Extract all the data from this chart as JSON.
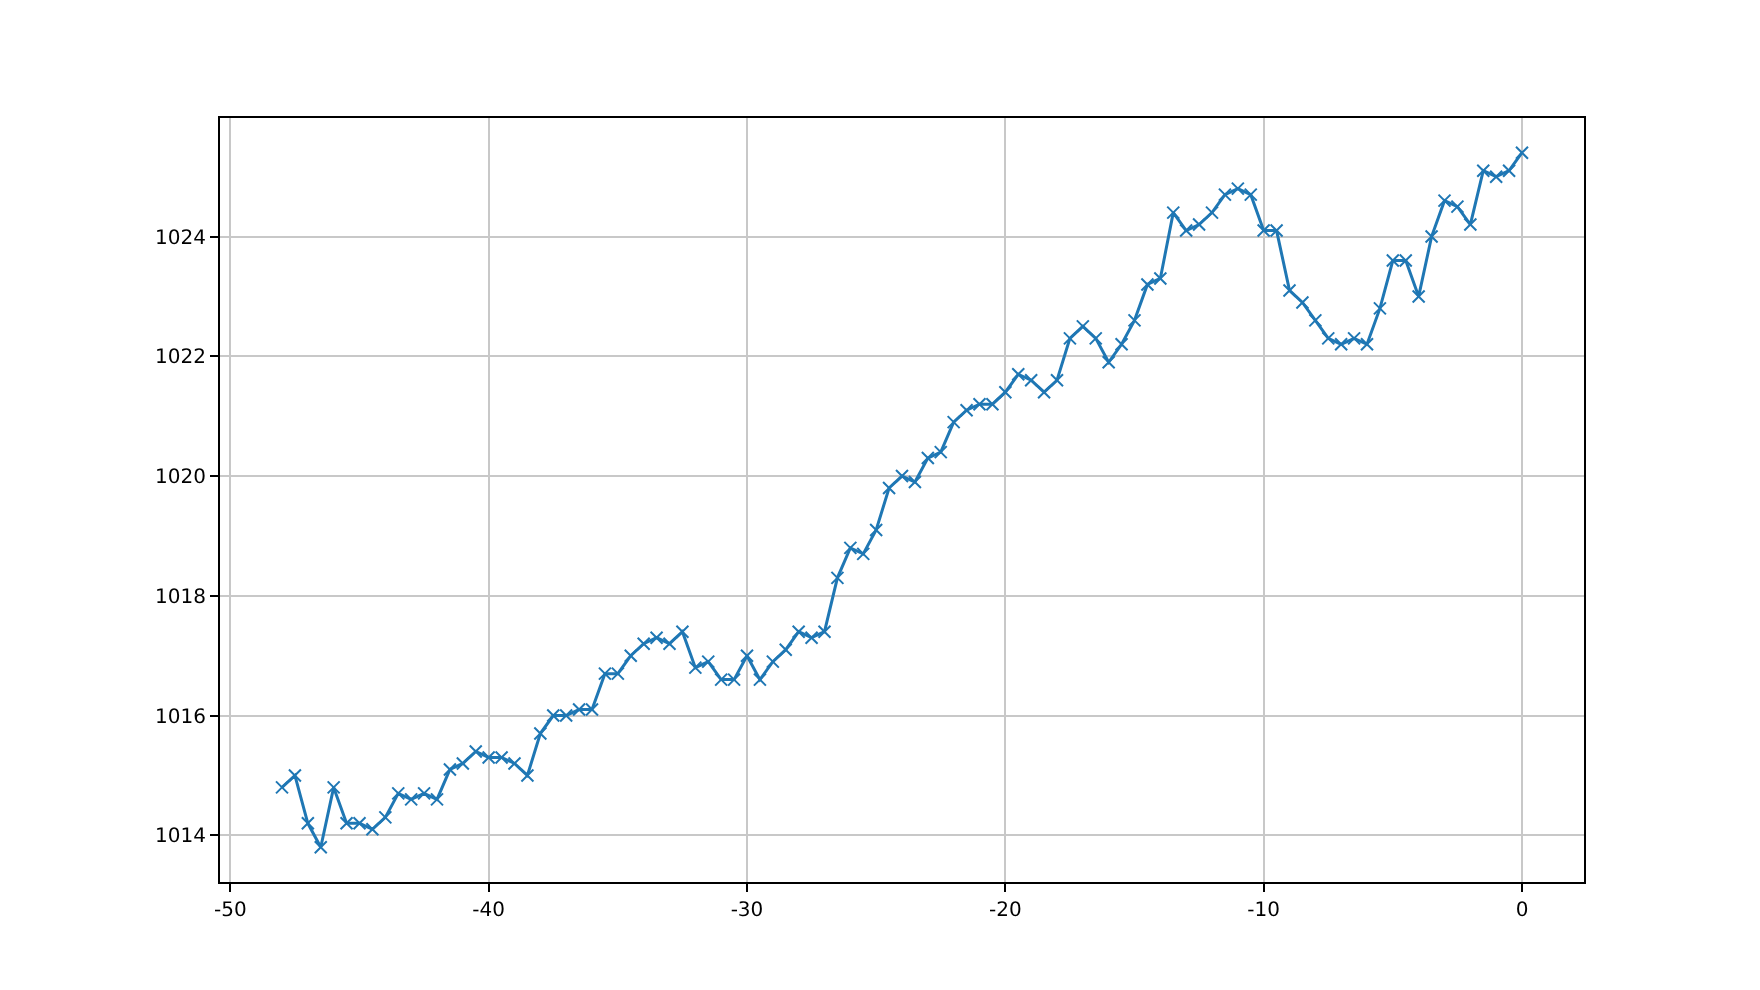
{
  "chart_data": {
    "type": "line",
    "marker": "cross",
    "grid": true,
    "xlim": [
      -50.4,
      2.4
    ],
    "xticks": [
      -50,
      -40,
      -30,
      -20,
      -10,
      0
    ],
    "ylim": [
      1013.22,
      1025.98
    ],
    "yticks": [
      1014,
      1016,
      1018,
      1020,
      1022,
      1024
    ],
    "x": [
      -48,
      -47.5,
      -47,
      -46.5,
      -46,
      -45.5,
      -45,
      -44.5,
      -44,
      -43.5,
      -43,
      -42.5,
      -42,
      -41.5,
      -41,
      -40.5,
      -40,
      -39.5,
      -39,
      -38.5,
      -38,
      -37.5,
      -37,
      -36.5,
      -36,
      -35.5,
      -35,
      -34.5,
      -34,
      -33.5,
      -33,
      -32.5,
      -32,
      -31.5,
      -31,
      -30.5,
      -30,
      -29.5,
      -29,
      -28.5,
      -28,
      -27.5,
      -27,
      -26.5,
      -26,
      -25.5,
      -25,
      -24.5,
      -24,
      -23.5,
      -23,
      -22.5,
      -22,
      -21.5,
      -21,
      -20.5,
      -20,
      -19.5,
      -19,
      -18.5,
      -18,
      -17.5,
      -17,
      -16.5,
      -16,
      -15.5,
      -15,
      -14.5,
      -14,
      -13.5,
      -13,
      -12.5,
      -12,
      -11.5,
      -11,
      -10.5,
      -10,
      -9.5,
      -9,
      -8.5,
      -8,
      -7.5,
      -7,
      -6.5,
      -6,
      -5.5,
      -5,
      -4.5,
      -4,
      -3.5,
      -3,
      -2.5,
      -2,
      -1.5,
      -1,
      -0.5,
      0
    ],
    "series": [
      {
        "color": "#1f77b4",
        "values": [
          1014.8,
          1015.0,
          1014.2,
          1013.8,
          1014.8,
          1014.2,
          1014.2,
          1014.1,
          1014.3,
          1014.7,
          1014.6,
          1014.7,
          1014.6,
          1015.1,
          1015.2,
          1015.4,
          1015.3,
          1015.3,
          1015.2,
          1015.0,
          1015.7,
          1016.0,
          1016.0,
          1016.1,
          1016.1,
          1016.7,
          1016.7,
          1017.0,
          1017.2,
          1017.3,
          1017.2,
          1017.4,
          1016.8,
          1016.9,
          1016.6,
          1016.6,
          1017.0,
          1016.6,
          1016.9,
          1017.1,
          1017.4,
          1017.3,
          1017.4,
          1018.3,
          1018.8,
          1018.7,
          1019.1,
          1019.8,
          1020.0,
          1019.9,
          1020.3,
          1020.4,
          1020.9,
          1021.1,
          1021.2,
          1021.2,
          1021.4,
          1021.7,
          1021.6,
          1021.4,
          1021.6,
          1022.3,
          1022.5,
          1022.3,
          1021.9,
          1022.2,
          1022.6,
          1023.2,
          1023.3,
          1024.4,
          1024.1,
          1024.2,
          1024.4,
          1024.7,
          1024.8,
          1024.7,
          1024.1,
          1024.1,
          1023.1,
          1022.9,
          1022.6,
          1022.3,
          1022.2,
          1022.3,
          1022.2,
          1022.8,
          1023.6,
          1023.6,
          1023.0,
          1024.0,
          1024.6,
          1024.5,
          1024.2,
          1025.1,
          1025.0,
          1025.1,
          1025.4
        ]
      }
    ]
  }
}
